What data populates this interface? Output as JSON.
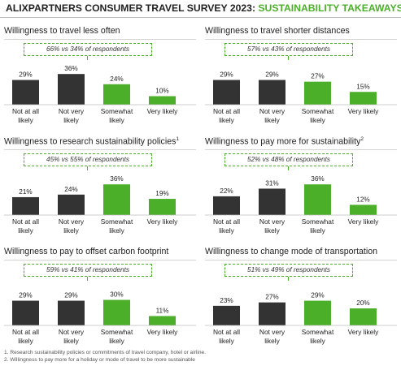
{
  "header": {
    "title_prefix": "ALIXPARTNERS CONSUMER TRAVEL SURVEY 2023: ",
    "title_highlight": "SUSTAINABILITY TAKEAWAYS"
  },
  "colors": {
    "dark": "#333333",
    "green": "#4caf2a",
    "text": "#222222"
  },
  "chart_data": [
    {
      "type": "bar",
      "title": "Willingness to travel less often",
      "callout": "66% vs 34% of respondents",
      "categories": [
        "Not at all likely",
        "Not very likely",
        "Somewhat likely",
        "Very likely"
      ],
      "values": [
        29,
        36,
        24,
        10
      ],
      "value_labels": [
        "29%",
        "36%",
        "24%",
        "10%"
      ],
      "colors": [
        "#333333",
        "#333333",
        "#4caf2a",
        "#4caf2a"
      ]
    },
    {
      "type": "bar",
      "title": "Willingness to travel shorter distances",
      "callout": "57% vs 43% of respondents",
      "categories": [
        "Not at all likely",
        "Not very likely",
        "Somewhat likely",
        "Very likely"
      ],
      "values": [
        29,
        29,
        27,
        15
      ],
      "value_labels": [
        "29%",
        "29%",
        "27%",
        "15%"
      ],
      "colors": [
        "#333333",
        "#333333",
        "#4caf2a",
        "#4caf2a"
      ]
    },
    {
      "type": "bar",
      "title": "Willingness to research sustainability policies",
      "footnote_ref": "1",
      "callout": "45% vs 55% of respondents",
      "categories": [
        "Not at all likely",
        "Not very likely",
        "Somewhat likely",
        "Very likely"
      ],
      "values": [
        21,
        24,
        36,
        19
      ],
      "value_labels": [
        "21%",
        "24%",
        "36%",
        "19%"
      ],
      "colors": [
        "#333333",
        "#333333",
        "#4caf2a",
        "#4caf2a"
      ]
    },
    {
      "type": "bar",
      "title": "Willingness to pay more for sustainability",
      "footnote_ref": "2",
      "callout": "52% vs 48% of respondents",
      "categories": [
        "Not at all likely",
        "Not very likely",
        "Somewhat likely",
        "Very likely"
      ],
      "values": [
        22,
        31,
        36,
        12
      ],
      "value_labels": [
        "22%",
        "31%",
        "36%",
        "12%"
      ],
      "colors": [
        "#333333",
        "#333333",
        "#4caf2a",
        "#4caf2a"
      ]
    },
    {
      "type": "bar",
      "title": "Willingness to pay to offset carbon footprint",
      "callout": "59% vs 41% of respondents",
      "categories": [
        "Not at all likely",
        "Not very likely",
        "Somewhat likely",
        "Very likely"
      ],
      "values": [
        29,
        29,
        30,
        11
      ],
      "value_labels": [
        "29%",
        "29%",
        "30%",
        "11%"
      ],
      "colors": [
        "#333333",
        "#333333",
        "#4caf2a",
        "#4caf2a"
      ]
    },
    {
      "type": "bar",
      "title": "Willingness to change mode of transportation",
      "callout": "51% vs 49% of respondents",
      "categories": [
        "Not at all likely",
        "Not very likely",
        "Somewhat likely",
        "Very likely"
      ],
      "values": [
        23,
        27,
        29,
        20
      ],
      "value_labels": [
        "23%",
        "27%",
        "29%",
        "20%"
      ],
      "colors": [
        "#333333",
        "#333333",
        "#4caf2a",
        "#4caf2a"
      ]
    }
  ],
  "footnotes": [
    "1. Research sustainability policies or commitments of travel company, hotel or airline.",
    "2. Willingness to pay more for a holiday or mode of travel to be more sustainable"
  ]
}
